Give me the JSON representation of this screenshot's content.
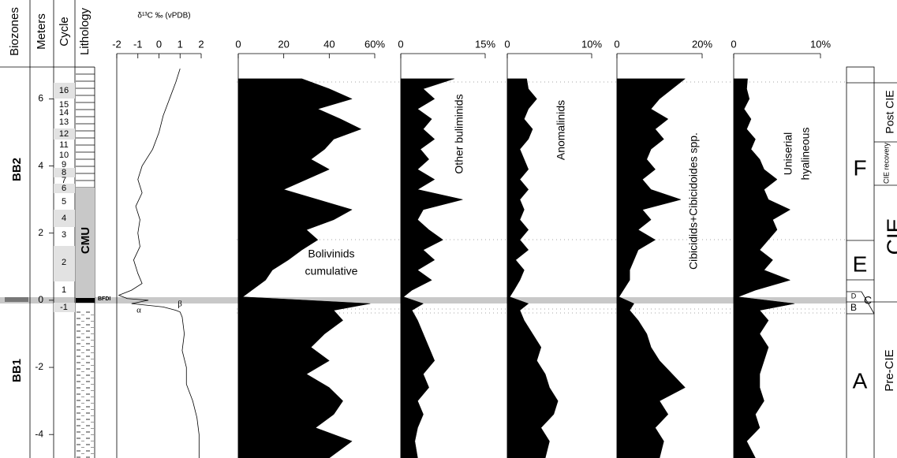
{
  "columns": {
    "biozones": {
      "title": "Biozones",
      "zones": [
        "BB2",
        "BB1"
      ]
    },
    "meters": {
      "title": "Meters",
      "ylim": [
        -4.7,
        6.95
      ],
      "yticks": [
        -4,
        -2,
        0,
        2,
        4,
        6
      ]
    },
    "cycle": {
      "title": "Cycle",
      "labels": [
        "16",
        "15",
        "14",
        "13",
        "12",
        "11",
        "10",
        "9",
        "8",
        "7",
        "6",
        "5",
        "4",
        "3",
        "2",
        "1",
        "-1"
      ]
    },
    "lithology": {
      "title": "Lithology",
      "unit": "CMU",
      "event": "BFDI"
    }
  },
  "zones": {
    "intervals": [
      "F",
      "E",
      "D",
      "C",
      "B",
      "A"
    ],
    "phases": [
      "Post CIE",
      "CIE recovery",
      "CIE",
      "Pre-CIE"
    ]
  },
  "chart_data": [
    {
      "type": "line",
      "xlabel": "δ¹³C ‰ (vPDB)",
      "xlim": [
        -2,
        2
      ],
      "xticks": [
        -2,
        -1,
        0,
        1,
        2
      ],
      "annotations": [
        "α",
        "β"
      ],
      "depth": [
        6.9,
        6.5,
        6.0,
        5.5,
        5.0,
        4.5,
        4.2,
        4.0,
        3.6,
        3.2,
        2.8,
        2.4,
        2.0,
        1.6,
        1.2,
        0.8,
        0.5,
        0.3,
        0.15,
        0.05,
        0,
        -0.1,
        -0.2,
        -0.3,
        -0.35,
        -0.5,
        -1.0,
        -1.5,
        -2.0,
        -2.5,
        -3.0,
        -3.5,
        -4.0,
        -4.7
      ],
      "values": [
        1.0,
        0.8,
        0.5,
        0.2,
        0.0,
        -0.3,
        -0.6,
        -0.8,
        -1.0,
        -0.8,
        -1.1,
        -0.9,
        -1.0,
        -0.9,
        -1.2,
        -1.0,
        -0.8,
        -1.3,
        -1.9,
        -1.5,
        -0.5,
        -1.3,
        0.2,
        0.8,
        1.0,
        1.1,
        1.2,
        1.1,
        1.3,
        1.3,
        1.6,
        1.8,
        1.9,
        1.9
      ]
    },
    {
      "type": "area",
      "label": [
        "Bolivinids",
        "cumulative"
      ],
      "xlim": [
        0,
        60
      ],
      "xticks": [
        0,
        20,
        40,
        {
          "value": 60,
          "label": "60%"
        }
      ],
      "depth": [
        6.6,
        6.3,
        6.0,
        5.7,
        5.4,
        5.1,
        4.8,
        4.5,
        4.2,
        3.9,
        3.6,
        3.3,
        3.0,
        2.7,
        2.4,
        2.1,
        1.8,
        1.5,
        1.2,
        0.9,
        0.6,
        0.3,
        0.1,
        -0.1,
        -0.3,
        -0.6,
        -1.0,
        -1.4,
        -1.8,
        -2.2,
        -2.6,
        -3.0,
        -3.4,
        -3.8,
        -4.2,
        -4.7
      ],
      "values": [
        28,
        40,
        50,
        35,
        45,
        54,
        42,
        38,
        32,
        40,
        30,
        20,
        35,
        50,
        42,
        30,
        35,
        28,
        22,
        15,
        12,
        6,
        2,
        58,
        42,
        46,
        38,
        32,
        40,
        30,
        40,
        46,
        42,
        34,
        50,
        40
      ]
    },
    {
      "type": "area",
      "label": [
        "Other buliminids"
      ],
      "xlim": [
        0,
        15
      ],
      "xticks": [
        0,
        {
          "value": 15,
          "label": "15%"
        }
      ],
      "depth": [
        6.6,
        6.3,
        6.0,
        5.7,
        5.4,
        5.1,
        4.8,
        4.5,
        4.2,
        3.9,
        3.6,
        3.3,
        3.0,
        2.7,
        2.4,
        2.1,
        1.8,
        1.5,
        1.2,
        0.9,
        0.6,
        0.3,
        0.1,
        -0.1,
        -0.3,
        -0.6,
        -1.0,
        -1.4,
        -1.8,
        -2.2,
        -2.6,
        -3.0,
        -3.4,
        -3.8,
        -4.2,
        -4.7
      ],
      "values": [
        9.5,
        4,
        6,
        3,
        5.5,
        4,
        6,
        3.5,
        5,
        3,
        6,
        3,
        11,
        4,
        3,
        5,
        7.5,
        4,
        6,
        3,
        5.5,
        2,
        0.5,
        4,
        2,
        3,
        4,
        5,
        6,
        4,
        5,
        3,
        4,
        3,
        2.5,
        3
      ]
    },
    {
      "type": "area",
      "label": [
        "Anomalinids"
      ],
      "xlim": [
        0,
        10
      ],
      "xticks": [
        0,
        {
          "value": 10,
          "label": "10%"
        }
      ],
      "depth": [
        6.6,
        6.3,
        6.0,
        5.7,
        5.4,
        5.1,
        4.8,
        4.5,
        4.2,
        3.9,
        3.6,
        3.3,
        3.0,
        2.7,
        2.4,
        2.1,
        1.8,
        1.5,
        1.2,
        0.9,
        0.6,
        0.3,
        0.1,
        -0.1,
        -0.3,
        -0.6,
        -1.0,
        -1.4,
        -1.8,
        -2.2,
        -2.6,
        -3.0,
        -3.4,
        -3.8,
        -4.2,
        -4.7
      ],
      "values": [
        2.3,
        2.5,
        3.5,
        2.5,
        2,
        3,
        2.5,
        1.5,
        2,
        2.5,
        1.5,
        2.5,
        1.5,
        2,
        1.5,
        2.5,
        1.5,
        2.5,
        1,
        2,
        1.5,
        0.8,
        0.3,
        2.5,
        1.5,
        2,
        3,
        4,
        3.5,
        4.5,
        5,
        6,
        5.5,
        4,
        5,
        4.5
      ]
    },
    {
      "type": "area",
      "label": [
        "Cibicidids+Cibicidoides spp."
      ],
      "xlim": [
        0,
        20
      ],
      "xticks": [
        0,
        {
          "value": 20,
          "label": "20%"
        }
      ],
      "depth": [
        6.6,
        6.3,
        6.0,
        5.7,
        5.4,
        5.1,
        4.8,
        4.5,
        4.2,
        3.9,
        3.6,
        3.3,
        3.0,
        2.7,
        2.4,
        2.1,
        1.8,
        1.5,
        1.2,
        0.9,
        0.6,
        0.3,
        0.1,
        -0.1,
        -0.3,
        -0.6,
        -1.0,
        -1.4,
        -1.8,
        -2.2,
        -2.6,
        -3.0,
        -3.4,
        -3.8,
        -4.2,
        -4.7
      ],
      "values": [
        16,
        13,
        10,
        8,
        12,
        9,
        11,
        8,
        7,
        9,
        6,
        8,
        15,
        6,
        8,
        5,
        9,
        5,
        4,
        3,
        3,
        1.5,
        0.5,
        4,
        3,
        5,
        7,
        8,
        10,
        13,
        16,
        10,
        12,
        9,
        11,
        10
      ]
    },
    {
      "type": "area",
      "label": [
        "Uniserial",
        "hyalineous"
      ],
      "xlim": [
        0,
        10
      ],
      "xticks": [
        0,
        {
          "value": 10,
          "label": "10%"
        }
      ],
      "depth": [
        6.6,
        6.3,
        6.0,
        5.7,
        5.4,
        5.1,
        4.8,
        4.5,
        4.2,
        3.9,
        3.6,
        3.3,
        3.0,
        2.7,
        2.4,
        2.1,
        1.8,
        1.5,
        1.2,
        0.9,
        0.6,
        0.3,
        0.1,
        -0.1,
        -0.3,
        -0.6,
        -1.0,
        -1.4,
        -1.8,
        -2.2,
        -2.6,
        -3.0,
        -3.4,
        -3.8,
        -4.2,
        -4.7
      ],
      "values": [
        1.6,
        1.5,
        1.8,
        1.2,
        2,
        1.5,
        2.5,
        2,
        3,
        3.5,
        5,
        3.5,
        4,
        6.5,
        4.5,
        5,
        4,
        3,
        4.5,
        3.5,
        6.5,
        2.5,
        0.5,
        7,
        3,
        4,
        3,
        4,
        3.5,
        3,
        3,
        3.5,
        2.5,
        3,
        1.5,
        2.5
      ]
    }
  ]
}
